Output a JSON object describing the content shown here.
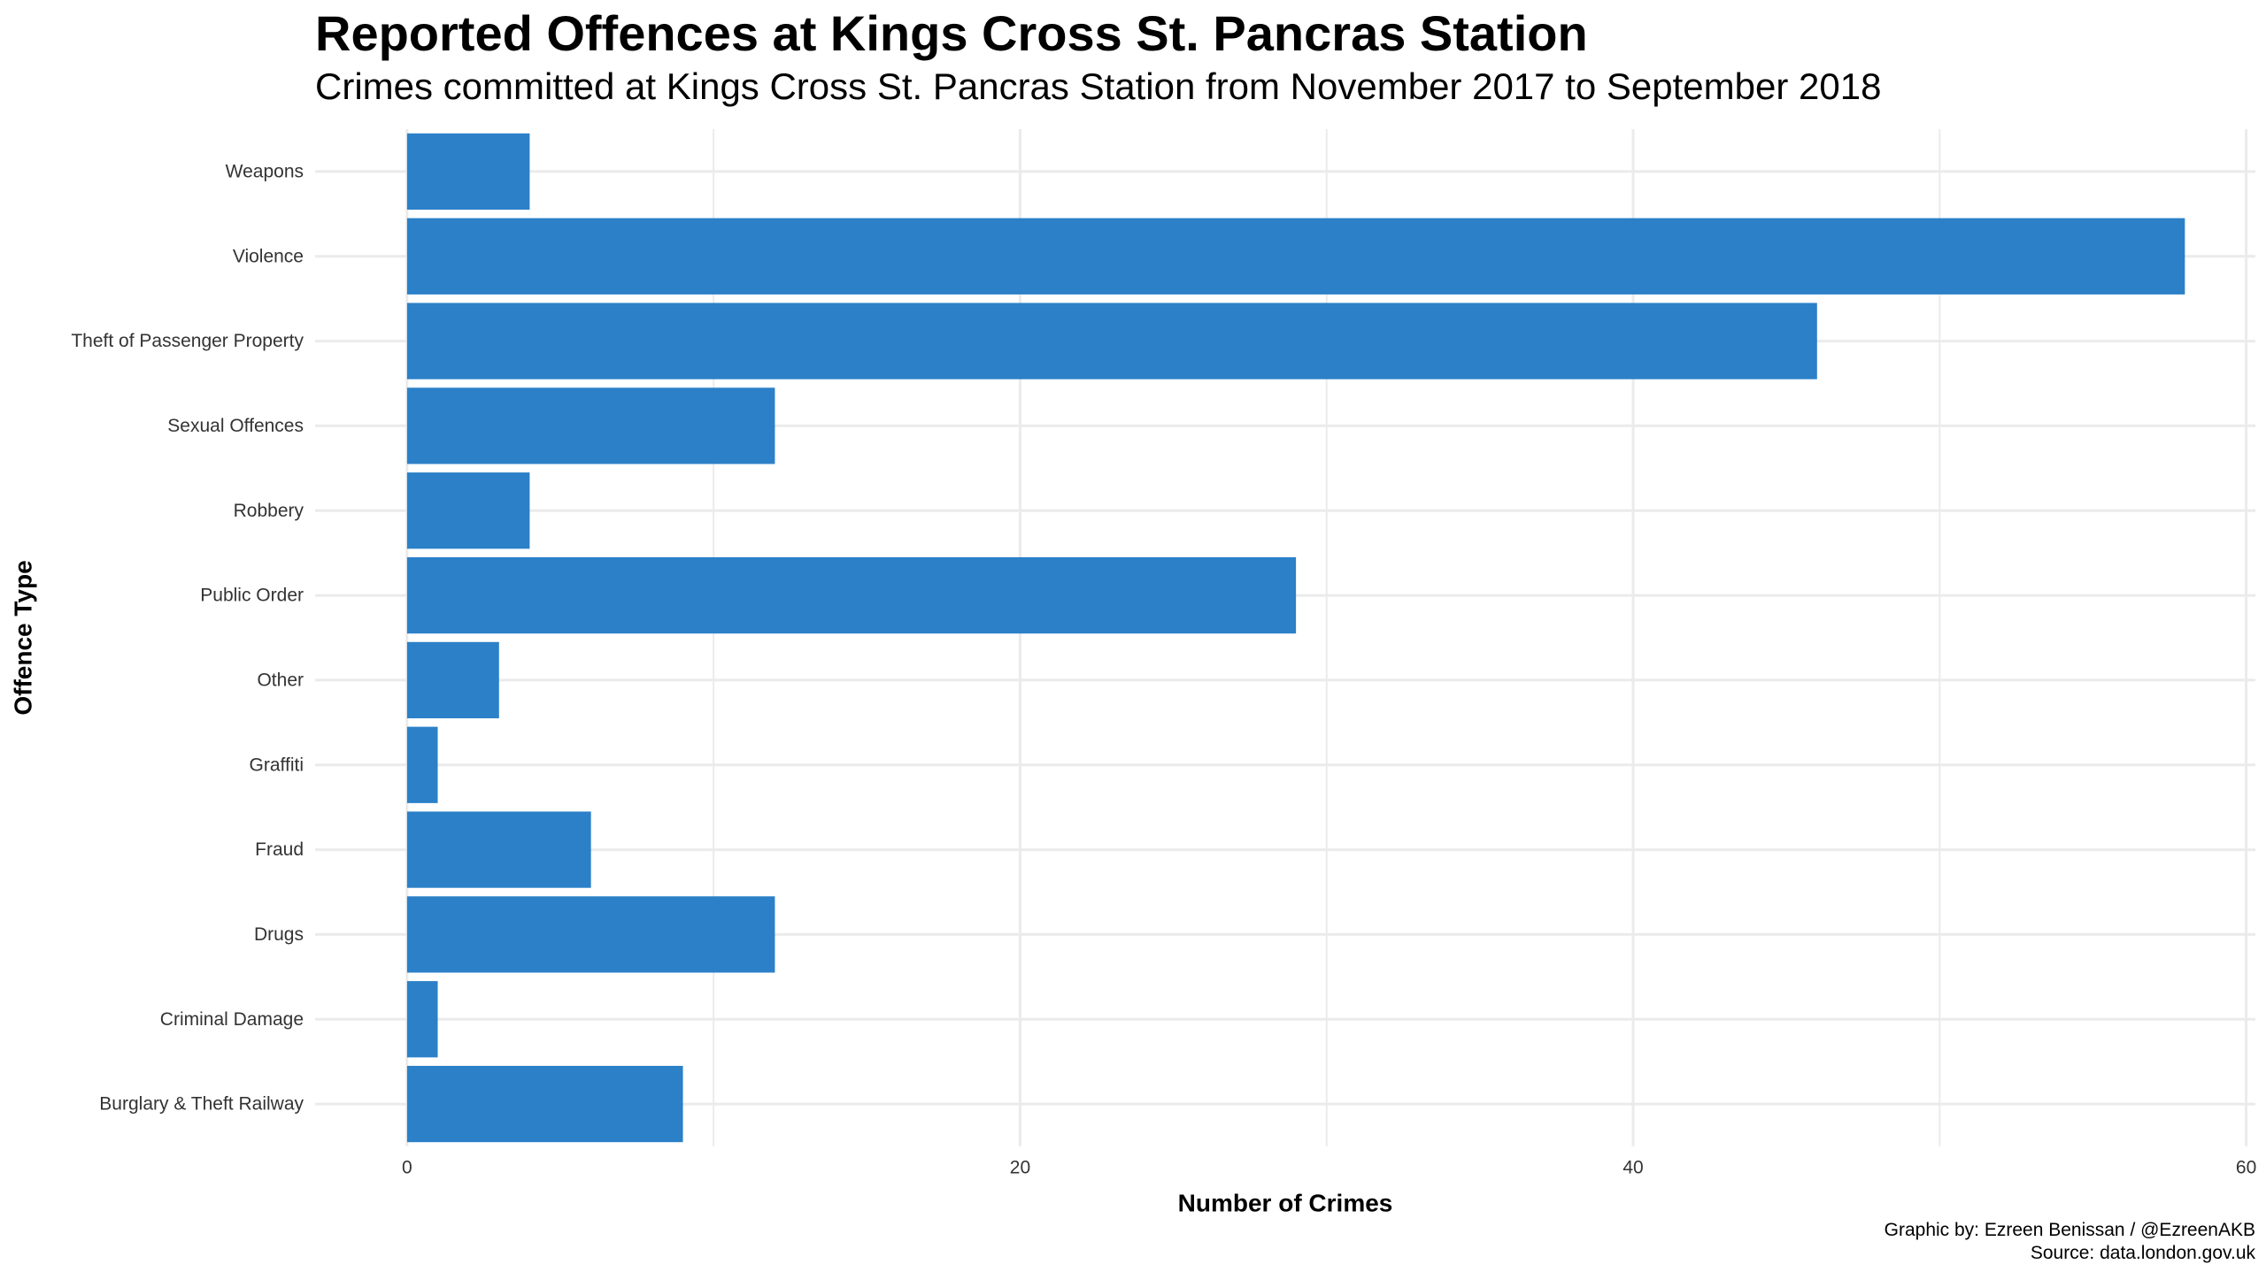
{
  "chart_data": {
    "type": "bar",
    "orientation": "horizontal",
    "title": "Reported Offences at Kings Cross St. Pancras Station",
    "subtitle": "Crimes committed at Kings Cross St. Pancras Station from November 2017 to September 2018",
    "xlabel": "Number of Crimes",
    "ylabel": "Offence Type",
    "categories": [
      "Weapons",
      "Violence",
      "Theft of Passenger Property",
      "Sexual Offences",
      "Robbery",
      "Public Order",
      "Other",
      "Graffiti",
      "Fraud",
      "Drugs",
      "Criminal Damage",
      "Burglary & Theft Railway"
    ],
    "values": [
      4,
      58,
      46,
      12,
      4,
      29,
      3,
      1,
      6,
      12,
      1,
      9
    ],
    "xlim": [
      -3,
      60.3
    ],
    "x_ticks": [
      0,
      20,
      40,
      60
    ],
    "x_minor_gridlines": [
      10,
      30,
      50
    ],
    "grid": true,
    "bar_color": "#2B80C8",
    "grid_color": "#EBEBEB",
    "caption_lines": [
      "Graphic by: Ezreen Benissan / @EzreenAKB",
      "Source: data.london.gov.uk"
    ]
  }
}
